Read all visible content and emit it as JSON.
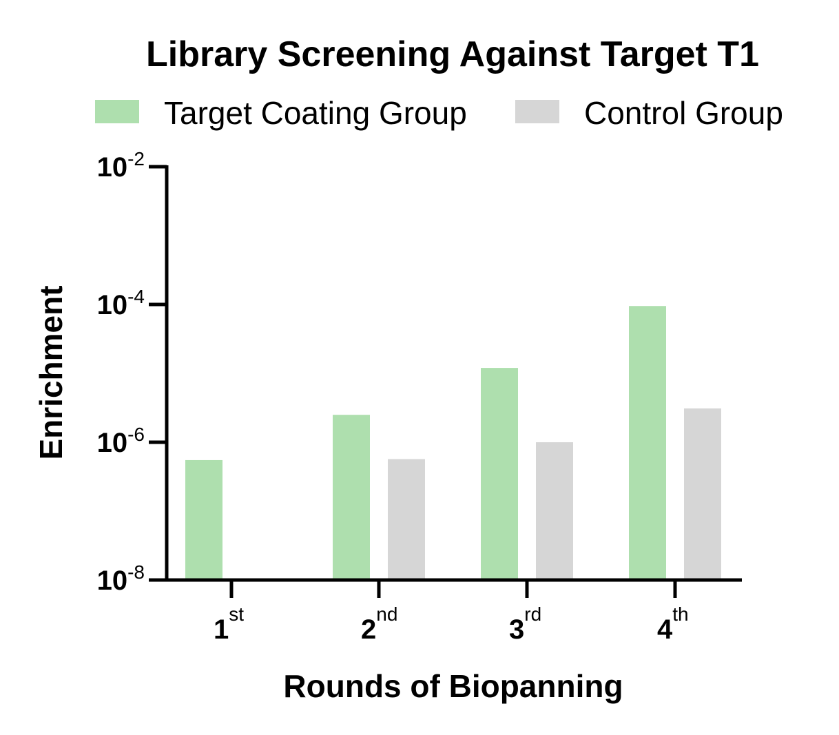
{
  "chart_data": {
    "type": "bar",
    "title": "Library Screening Against Target T1",
    "xlabel": "Rounds of Biopanning",
    "ylabel": "Enrichment",
    "yscale": "log",
    "ylim": [
      1e-08,
      0.01
    ],
    "categories": [
      {
        "base": "1",
        "sup": "st"
      },
      {
        "base": "2",
        "sup": "nd"
      },
      {
        "base": "3",
        "sup": "rd"
      },
      {
        "base": "4",
        "sup": "th"
      }
    ],
    "yticks": [
      {
        "value": 1e-08,
        "base": "10",
        "exp": "-8"
      },
      {
        "value": 1e-06,
        "base": "10",
        "exp": "-6"
      },
      {
        "value": 0.0001,
        "base": "10",
        "exp": "-4"
      },
      {
        "value": 0.01,
        "base": "10",
        "exp": "-2"
      }
    ],
    "series": [
      {
        "name": "Target Coating Group",
        "color": "#aedfae",
        "values": [
          5.5e-07,
          2.5e-06,
          1.2e-05,
          9.5e-05
        ]
      },
      {
        "name": "Control Group",
        "color": "#d6d6d6",
        "values": [
          null,
          5.7e-07,
          1e-06,
          3.1e-06
        ]
      }
    ],
    "grid": false,
    "legend": "top"
  }
}
